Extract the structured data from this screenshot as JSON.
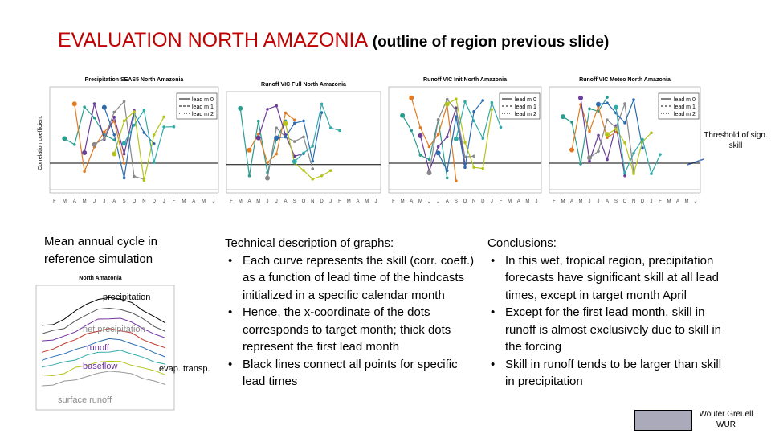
{
  "title": {
    "main": "EVALUATION NORTH AMAZONIA",
    "sub": "(outline of region previous slide)"
  },
  "month_axis": [
    "F",
    "M",
    "A",
    "M",
    "J",
    "J",
    "A",
    "S",
    "O",
    "N",
    "D",
    "J",
    "F",
    "M",
    "A",
    "M",
    "J"
  ],
  "panels": [
    {
      "title": "Precipitation SEAS5 North Amazonia",
      "legend": [
        "lead m 0",
        "lead m 1",
        "lead m 2"
      ]
    },
    {
      "title": "Runoff VIC Full North Amazonia"
    },
    {
      "title": "Runoff VIC Init North Amazonia",
      "legend": [
        "lead m 0",
        "lead m 1",
        "lead m 2"
      ]
    },
    {
      "title": "Runoff VIC Meteo North Amazonia",
      "legend": [
        "lead m 0",
        "lead m 1",
        "lead m 2"
      ]
    }
  ],
  "y_axis_label": "Correlation coefficient",
  "threshold_note": "Threshold of sign. skill",
  "annual_cycle": {
    "heading": "Mean annual cycle in reference simulation",
    "chart_title": "North Amazonia",
    "labels": [
      "precipitation",
      "net precipitation",
      "runoff",
      "baseflow",
      "evap. transp.",
      "surface runoff"
    ]
  },
  "technical": {
    "heading": "Technical description of graphs:",
    "bullets": [
      "Each curve represents the skill (corr. coeff.) as a function of lead time of the hindcasts initialized in a specific calendar month",
      "Hence, the x-coordinate of the dots corresponds to target month; thick dots represent the first lead month",
      "Black lines connect all points for specific lead times"
    ]
  },
  "conclusions": {
    "heading": "Conclusions:",
    "bullets": [
      "In this wet, tropical region, precipitation forecasts have significant skill at all lead times, except in target month April",
      "Except for the first lead month, skill in runoff is almost exclusively due to skill in the forcing",
      "Skill in runoff tends to be larger than skill in precipitation"
    ]
  },
  "author": [
    "Wouter Greuell",
    "WUR"
  ]
}
